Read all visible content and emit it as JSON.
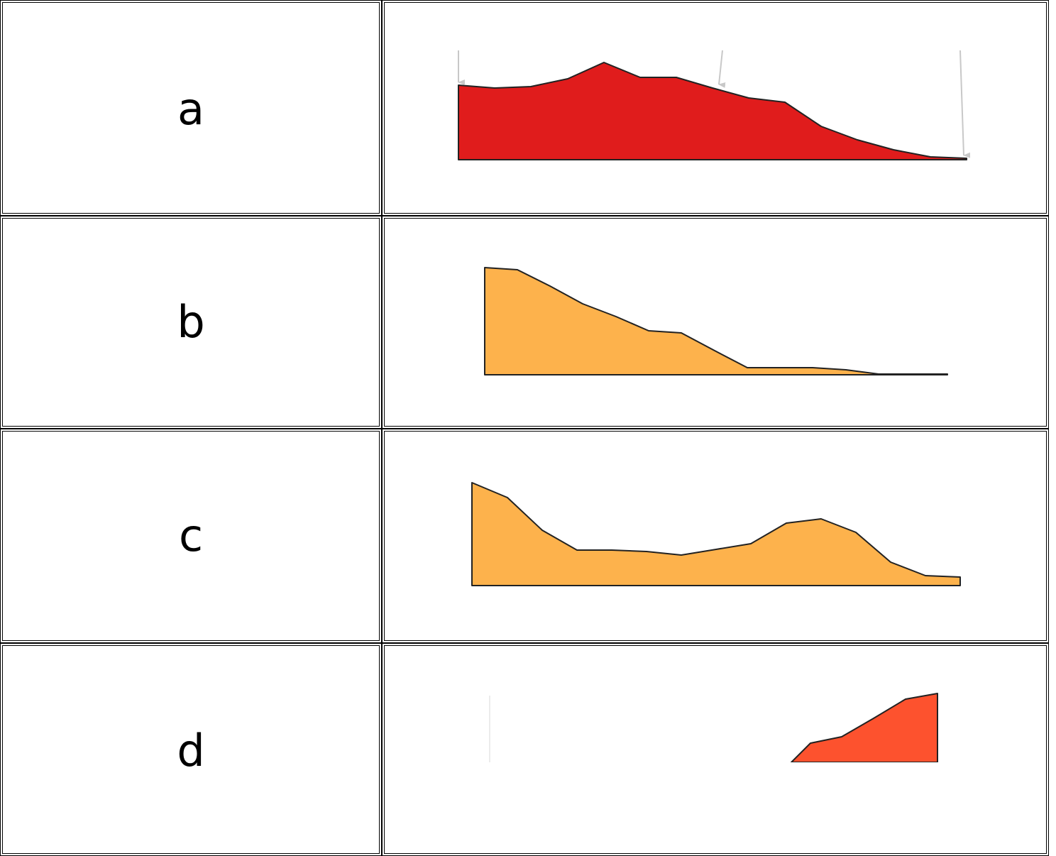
{
  "rows": [
    {
      "label": "a",
      "fill": "#e01c1c"
    },
    {
      "label": "b",
      "fill": "#fdb24c"
    },
    {
      "label": "c",
      "fill": "#fdb24c"
    },
    {
      "label": "d",
      "fill": "#fd522e"
    }
  ],
  "colors": {
    "outline": "#222222",
    "arrow": "#c8c8c8"
  }
}
